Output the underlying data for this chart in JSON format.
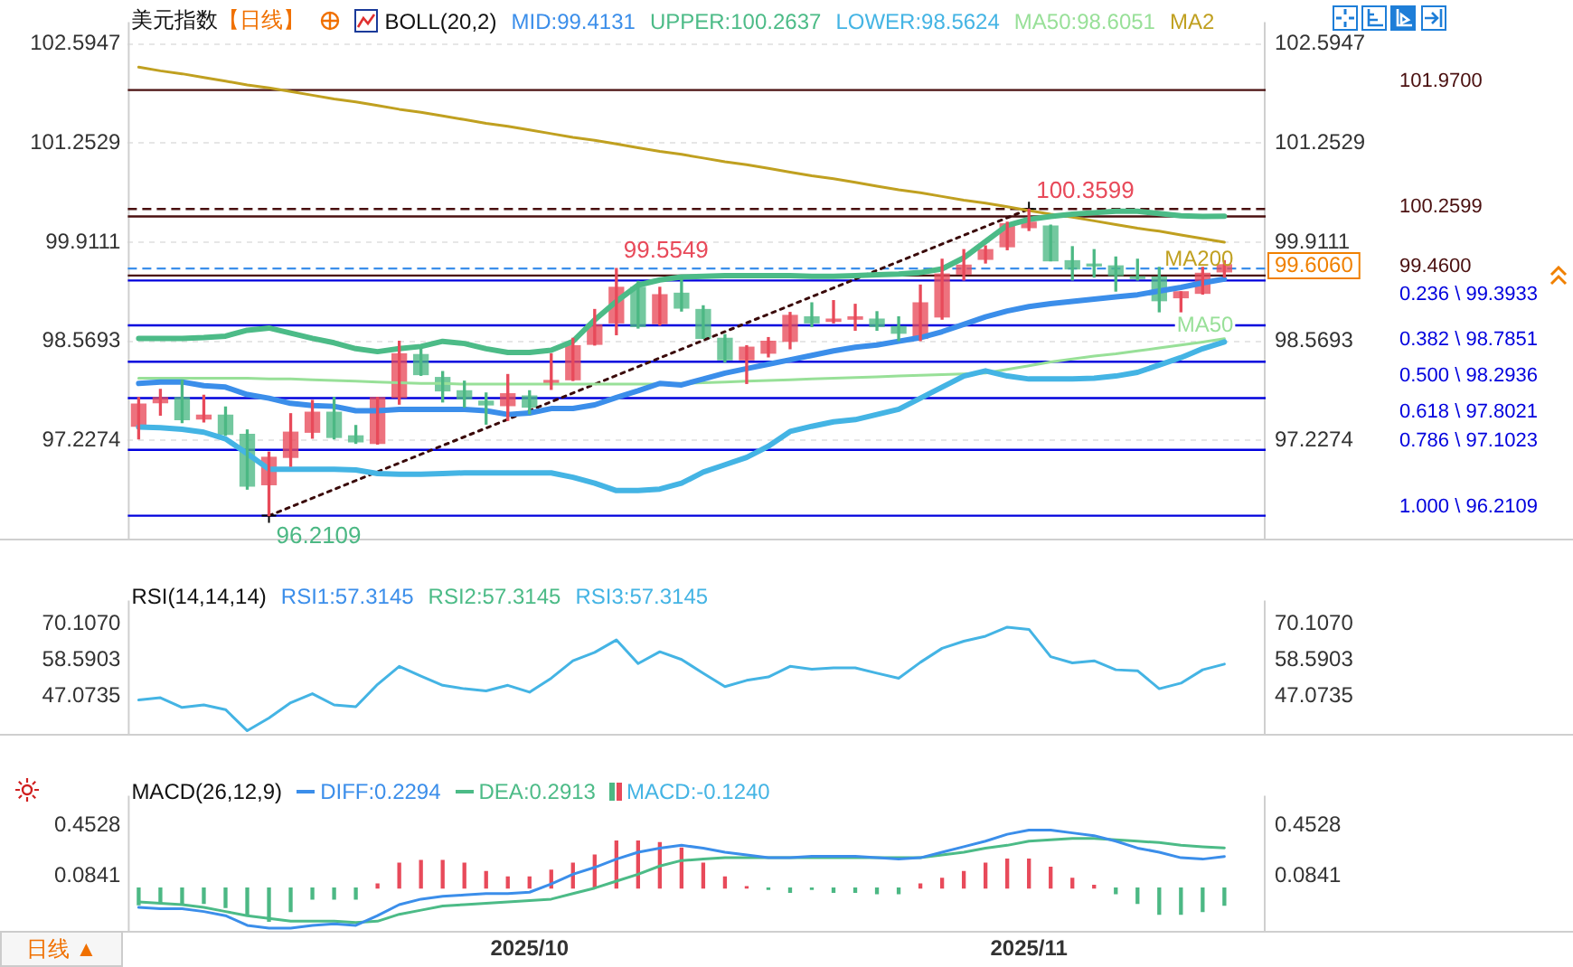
{
  "chart_data": [
    {
      "type": "candlestick",
      "title": "美元指数",
      "subtitle": "【日线】",
      "legend_title": "BOLL(20,2)",
      "legend": "top",
      "tick_labels": "y",
      "grid": "y",
      "marker": "none",
      "categories": [
        null,
        null,
        null,
        null,
        null,
        null,
        null,
        null,
        null,
        null,
        null,
        null,
        null,
        null,
        null,
        null,
        null,
        null,
        "2025/10",
        null,
        null,
        null,
        null,
        null,
        null,
        null,
        null,
        null,
        null,
        null,
        null,
        null,
        null,
        null,
        null,
        null,
        null,
        null,
        null,
        null,
        null,
        "2025/11",
        null,
        null,
        null,
        null,
        null,
        null,
        null,
        null,
        null
      ],
      "ohlc": [
        [
          97.42,
          97.81,
          97.25,
          97.72
        ],
        [
          97.74,
          97.92,
          97.57,
          97.81
        ],
        [
          97.81,
          98.04,
          97.47,
          97.51
        ],
        [
          97.52,
          97.84,
          97.48,
          97.57
        ],
        [
          97.57,
          97.68,
          97.3,
          97.31
        ],
        [
          97.31,
          97.37,
          96.57,
          96.61
        ],
        [
          96.63,
          97.07,
          96.2109,
          97.0
        ],
        [
          97.0,
          97.59,
          96.88,
          97.34
        ],
        [
          97.34,
          97.77,
          97.26,
          97.61
        ],
        [
          97.61,
          97.81,
          97.25,
          97.27
        ],
        [
          97.29,
          97.43,
          97.19,
          97.21
        ],
        [
          97.19,
          97.81,
          97.18,
          97.81
        ],
        [
          97.81,
          98.57,
          97.72,
          98.4
        ],
        [
          98.39,
          98.48,
          98.11,
          98.12
        ],
        [
          98.08,
          98.16,
          97.75,
          97.9
        ],
        [
          97.9,
          98.03,
          97.68,
          97.79
        ],
        [
          97.76,
          97.87,
          97.45,
          97.71
        ],
        [
          97.7,
          98.12,
          97.5,
          97.86
        ],
        [
          97.83,
          97.9,
          97.59,
          97.68
        ],
        [
          98.0,
          98.4,
          97.92,
          98.04
        ],
        [
          98.05,
          98.61,
          98.04,
          98.51
        ],
        [
          98.53,
          99.0,
          98.52,
          98.79
        ],
        [
          98.82,
          99.5549,
          98.66,
          99.3
        ],
        [
          99.3,
          99.38,
          98.75,
          98.77
        ],
        [
          98.81,
          99.3,
          98.79,
          99.2
        ],
        [
          99.22,
          99.44,
          98.98,
          99.02
        ],
        [
          99.0,
          99.05,
          98.61,
          98.61
        ],
        [
          98.61,
          98.66,
          98.29,
          98.32
        ],
        [
          98.32,
          98.51,
          98.0,
          98.49
        ],
        [
          98.41,
          98.62,
          98.36,
          98.57
        ],
        [
          98.57,
          98.96,
          98.47,
          98.92
        ],
        [
          98.9,
          99.09,
          98.77,
          98.82
        ],
        [
          98.84,
          99.12,
          98.82,
          98.87
        ],
        [
          98.87,
          99.07,
          98.72,
          98.9
        ],
        [
          98.87,
          98.97,
          98.72,
          98.77
        ],
        [
          98.77,
          98.9,
          98.58,
          98.68
        ],
        [
          98.61,
          99.33,
          98.58,
          99.09
        ],
        [
          98.9,
          99.68,
          98.87,
          99.48
        ],
        [
          99.48,
          99.81,
          99.4,
          99.6
        ],
        [
          99.68,
          99.86,
          99.63,
          99.81
        ],
        [
          99.85,
          100.18,
          99.81,
          100.16
        ],
        [
          100.11,
          100.3599,
          100.07,
          100.18
        ],
        [
          100.13,
          100.14,
          99.66,
          99.66
        ],
        [
          99.66,
          99.85,
          99.4,
          99.55
        ],
        [
          99.61,
          99.81,
          99.44,
          99.59
        ],
        [
          99.59,
          99.71,
          99.25,
          99.46
        ],
        [
          99.44,
          99.68,
          99.4,
          99.42
        ],
        [
          99.44,
          99.57,
          98.97,
          99.12
        ],
        [
          99.16,
          99.24,
          98.97,
          99.24
        ],
        [
          99.22,
          99.57,
          99.21,
          99.49
        ],
        [
          99.51,
          99.66,
          99.44,
          99.606
        ]
      ],
      "series": [
        {
          "name": "MID:99.4131",
          "type": "line",
          "color": "#3b8eea",
          "values": [
            98.0,
            98.02,
            98.02,
            97.97,
            97.95,
            97.85,
            97.8,
            97.73,
            97.7,
            97.69,
            97.63,
            97.63,
            97.65,
            97.65,
            97.65,
            97.65,
            97.63,
            97.58,
            97.6,
            97.66,
            97.66,
            97.71,
            97.81,
            97.9,
            98.0,
            97.98,
            98.06,
            98.14,
            98.2,
            98.26,
            98.32,
            98.38,
            98.44,
            98.49,
            98.52,
            98.57,
            98.62,
            98.7,
            98.8,
            98.9,
            98.98,
            99.04,
            99.08,
            99.11,
            99.14,
            99.17,
            99.2,
            99.25,
            99.3,
            99.36,
            99.4131
          ]
        },
        {
          "name": "UPPER:100.2637",
          "type": "line",
          "color": "#4cbb87",
          "values": [
            98.61,
            98.61,
            98.61,
            98.62,
            98.64,
            98.72,
            98.75,
            98.68,
            98.61,
            98.55,
            98.47,
            98.43,
            98.47,
            98.5,
            98.57,
            98.54,
            98.47,
            98.42,
            98.42,
            98.45,
            98.57,
            98.86,
            99.11,
            99.33,
            99.4,
            99.44,
            99.45,
            99.46,
            99.46,
            99.46,
            99.46,
            99.45,
            99.45,
            99.46,
            99.47,
            99.48,
            99.5,
            99.55,
            99.7,
            99.92,
            100.14,
            100.22,
            100.26,
            100.29,
            100.31,
            100.33,
            100.33,
            100.3,
            100.27,
            100.26,
            100.2637
          ]
        },
        {
          "name": "LOWER:98.5624",
          "type": "line",
          "color": "#44b4e4",
          "values": [
            97.41,
            97.4,
            97.38,
            97.34,
            97.25,
            97.05,
            96.84,
            96.84,
            96.84,
            96.84,
            96.83,
            96.78,
            96.77,
            96.77,
            96.78,
            96.79,
            96.79,
            96.79,
            96.79,
            96.79,
            96.73,
            96.65,
            96.55,
            96.55,
            96.57,
            96.65,
            96.8,
            96.9,
            97.0,
            97.15,
            97.35,
            97.42,
            97.48,
            97.51,
            97.58,
            97.65,
            97.8,
            97.95,
            98.1,
            98.17,
            98.1,
            98.06,
            98.06,
            98.06,
            98.07,
            98.1,
            98.15,
            98.25,
            98.35,
            98.47,
            98.5624
          ]
        },
        {
          "name": "MA50:98.6051",
          "type": "line",
          "color": "#98e098",
          "values": [
            98.07,
            98.07,
            98.07,
            98.07,
            98.07,
            98.07,
            98.06,
            98.06,
            98.05,
            98.04,
            98.03,
            98.02,
            98.01,
            98.0,
            98.0,
            97.99,
            97.99,
            97.99,
            97.99,
            97.99,
            97.99,
            97.99,
            97.99,
            97.99,
            97.99,
            98.0,
            98.01,
            98.02,
            98.03,
            98.04,
            98.05,
            98.06,
            98.07,
            98.08,
            98.09,
            98.1,
            98.11,
            98.12,
            98.13,
            98.14,
            98.19,
            98.24,
            98.29,
            98.33,
            98.37,
            98.4,
            98.44,
            98.48,
            98.52,
            98.56,
            98.6051
          ]
        },
        {
          "name": "MA2",
          "type": "line",
          "color": "#c0a020",
          "values": [
            102.28,
            102.23,
            102.19,
            102.14,
            102.09,
            102.04,
            102.0,
            101.95,
            101.9,
            101.85,
            101.81,
            101.76,
            101.71,
            101.67,
            101.62,
            101.57,
            101.52,
            101.48,
            101.43,
            101.38,
            101.33,
            101.29,
            101.24,
            101.19,
            101.14,
            101.1,
            101.05,
            101.0,
            100.96,
            100.91,
            100.86,
            100.81,
            100.77,
            100.72,
            100.67,
            100.62,
            100.58,
            100.53,
            100.48,
            100.44,
            100.39,
            100.34,
            100.29,
            100.25,
            100.2,
            100.15,
            100.1,
            100.06,
            100.01,
            99.96,
            99.91
          ]
        },
        {
          "type": "line",
          "color": "#3a0a0a",
          "line_style": "dotted",
          "marker": "cross",
          "values": [
            null,
            null,
            null,
            null,
            null,
            null,
            96.2109,
            null,
            null,
            null,
            null,
            null,
            null,
            null,
            null,
            null,
            null,
            null,
            null,
            null,
            null,
            null,
            null,
            null,
            null,
            null,
            null,
            null,
            null,
            null,
            null,
            null,
            null,
            null,
            null,
            null,
            null,
            null,
            null,
            null,
            null,
            100.3599,
            null,
            null,
            null,
            null,
            null,
            null,
            null,
            null,
            null
          ]
        }
      ],
      "ylim": [
        95.9,
        102.89
      ],
      "yticks": [
        97.2274,
        98.5693,
        99.9111,
        101.2529,
        102.5947
      ],
      "y2lim": [
        95.9,
        102.89
      ],
      "y2ticks": [
        97.2274,
        98.5693,
        99.9111,
        101.2529,
        102.5947
      ],
      "ref_lines": [
        {
          "axis": "y",
          "value": 101.97,
          "label": "101.9700",
          "color": "#4a1010"
        },
        {
          "axis": "y",
          "value": 100.2599,
          "label": "100.2599",
          "color": "#4a1010"
        },
        {
          "axis": "y",
          "value": 99.46,
          "label": "99.4600",
          "color": "#4a1010"
        },
        {
          "axis": "y",
          "value": 100.3599,
          "color": "#4a1010",
          "line_style": "dashed"
        },
        {
          "axis": "y",
          "value": 99.5549,
          "color": "#3b8eea",
          "line_style": "dashed"
        },
        {
          "axis": "y",
          "value": 99.3933,
          "label": "0.236 \\ 99.3933",
          "color": "#0000dd"
        },
        {
          "axis": "y",
          "value": 98.7851,
          "label": "0.382 \\ 98.7851",
          "color": "#0000dd"
        },
        {
          "axis": "y",
          "value": 98.2936,
          "label": "0.500 \\ 98.2936",
          "color": "#0000dd"
        },
        {
          "axis": "y",
          "value": 97.8021,
          "label": "0.618 \\ 97.8021",
          "color": "#0000dd"
        },
        {
          "axis": "y",
          "value": 97.1023,
          "label": "0.786 \\ 97.1023",
          "color": "#0000dd"
        },
        {
          "axis": "y",
          "value": 96.2109,
          "label": "1.000 \\ 96.2109",
          "color": "#0000dd"
        }
      ],
      "annotations": [
        {
          "text": "100.3599",
          "y": 100.3599
        },
        {
          "text": "99.5549",
          "y": 99.5549
        },
        {
          "text": "96.2109",
          "y": 96.2109
        },
        {
          "text": "MA200",
          "y": 99.91
        },
        {
          "text": "MA50",
          "y": 98.6051
        },
        "99.6060"
      ]
    },
    {
      "type": "line",
      "legend_title": "RSI(14,14,14)",
      "legend": "top left",
      "tick_labels": "y",
      "marker": "none",
      "categories": [
        null,
        null,
        null,
        null,
        null,
        null,
        null,
        null,
        null,
        null,
        null,
        null,
        null,
        null,
        null,
        null,
        null,
        null,
        "2025/10",
        null,
        null,
        null,
        null,
        null,
        null,
        null,
        null,
        null,
        null,
        null,
        null,
        null,
        null,
        null,
        null,
        null,
        null,
        null,
        null,
        null,
        null,
        "2025/11",
        null,
        null,
        null,
        null,
        null,
        null,
        null,
        null,
        null
      ],
      "series": [
        {
          "name": "RSI1:57.3145",
          "color": "#3b8eea",
          "values": [
            null,
            null,
            null,
            null,
            null,
            null,
            null,
            null,
            null,
            null,
            null,
            null,
            null,
            null,
            null,
            null,
            null,
            null,
            null,
            null,
            null,
            null,
            null,
            null,
            null,
            null,
            null,
            null,
            null,
            null,
            null,
            null,
            null,
            null,
            null,
            null,
            null,
            null,
            null,
            null,
            null,
            null,
            null,
            null,
            null,
            null,
            null,
            null,
            null,
            null,
            null
          ]
        },
        {
          "name": "RSI2:57.3145",
          "color": "#4cbb87",
          "values": [
            null,
            null,
            null,
            null,
            null,
            null,
            null,
            null,
            null,
            null,
            null,
            null,
            null,
            null,
            null,
            null,
            null,
            null,
            null,
            null,
            null,
            null,
            null,
            null,
            null,
            null,
            null,
            null,
            null,
            null,
            null,
            null,
            null,
            null,
            null,
            null,
            null,
            null,
            null,
            null,
            null,
            null,
            null,
            null,
            null,
            null,
            null,
            null,
            null,
            null,
            null
          ]
        },
        {
          "name": "RSI3:57.3145",
          "color": "#44b4e4",
          "values": [
            45.8,
            46.5,
            43.4,
            44.2,
            42.7,
            35.9,
            40.0,
            44.9,
            47.8,
            44.2,
            43.6,
            50.8,
            56.6,
            53.5,
            50.5,
            49.4,
            48.7,
            50.5,
            48.3,
            52.8,
            58.4,
            61.1,
            65.1,
            57.5,
            61.3,
            58.8,
            54.4,
            50.1,
            52.1,
            53.2,
            56.6,
            55.7,
            56.1,
            56.1,
            54.4,
            52.8,
            57.9,
            62.4,
            64.7,
            66.3,
            69.2,
            68.5,
            59.7,
            57.7,
            58.4,
            55.5,
            55.2,
            49.4,
            51.2,
            55.5,
            57.3145
          ]
        }
      ],
      "ylim": [
        34.9,
        77.8
      ],
      "yticks": [
        {
          "value": 47.0735,
          "label": "47.0735"
        },
        {
          "value": 58.5903,
          "label": "58.5903"
        },
        {
          "value": 70.107,
          "label": "70.1070"
        }
      ],
      "y2lim": [
        34.9,
        77.8
      ],
      "y2ticks": [
        {
          "value": 47.0735,
          "label": "47.0735"
        },
        {
          "value": 58.5903,
          "label": "58.5903"
        },
        {
          "value": 70.107,
          "label": "70.1070"
        }
      ]
    },
    {
      "type": "bar",
      "legend_title": "MACD(26,12,9)",
      "legend": "top left",
      "marker": "none",
      "categories": [
        null,
        null,
        null,
        null,
        null,
        null,
        null,
        null,
        null,
        null,
        null,
        null,
        null,
        null,
        null,
        null,
        null,
        null,
        "2025/10",
        null,
        null,
        null,
        null,
        null,
        null,
        null,
        null,
        null,
        null,
        null,
        null,
        null,
        null,
        null,
        null,
        null,
        null,
        null,
        null,
        null,
        null,
        "2025/11",
        null,
        null,
        null,
        null,
        null,
        null,
        null,
        null,
        null
      ],
      "series": [
        {
          "name": "DIFF:0.2294",
          "type": "line",
          "color": "#3b8eea",
          "values": [
            -0.14,
            -0.15,
            -0.15,
            -0.17,
            -0.2,
            -0.27,
            -0.29,
            -0.29,
            -0.27,
            -0.26,
            -0.27,
            -0.2,
            -0.12,
            -0.08,
            -0.06,
            -0.05,
            -0.04,
            -0.04,
            -0.03,
            0.03,
            0.1,
            0.15,
            0.21,
            0.26,
            0.29,
            0.31,
            0.29,
            0.26,
            0.24,
            0.22,
            0.22,
            0.23,
            0.23,
            0.23,
            0.22,
            0.21,
            0.22,
            0.26,
            0.3,
            0.34,
            0.39,
            0.42,
            0.42,
            0.4,
            0.38,
            0.34,
            0.29,
            0.26,
            0.22,
            0.21,
            0.2294
          ]
        },
        {
          "name": "DEA:0.2913",
          "type": "line",
          "color": "#4cbb87",
          "values": [
            -0.1,
            -0.11,
            -0.12,
            -0.14,
            -0.17,
            -0.2,
            -0.22,
            -0.24,
            -0.24,
            -0.24,
            -0.25,
            -0.24,
            -0.19,
            -0.16,
            -0.13,
            -0.12,
            -0.11,
            -0.1,
            -0.09,
            -0.08,
            -0.04,
            0.0,
            0.05,
            0.1,
            0.16,
            0.2,
            0.21,
            0.22,
            0.22,
            0.22,
            0.22,
            0.22,
            0.22,
            0.22,
            0.22,
            0.22,
            0.22,
            0.24,
            0.26,
            0.29,
            0.31,
            0.34,
            0.35,
            0.36,
            0.36,
            0.35,
            0.34,
            0.33,
            0.31,
            0.3,
            0.2913
          ]
        },
        {
          "name": "MACD:-0.1240",
          "type": "bar",
          "color": "#44b4e4",
          "colors": [
            "#4cb884",
            "#4cb884",
            "#4cb884",
            "#4cb884",
            "#4cb884",
            "#4cb884",
            "#4cb884",
            "#4cb884",
            "#4cb884",
            "#4cb884",
            "#4cb884",
            "#e84a5a",
            "#e84a5a",
            "#e84a5a",
            "#e84a5a",
            "#e84a5a",
            "#e84a5a",
            "#e84a5a",
            "#e84a5a",
            "#e84a5a",
            "#e84a5a",
            "#e84a5a",
            "#e84a5a",
            "#e84a5a",
            "#e84a5a",
            "#e84a5a",
            "#e84a5a",
            "#e84a5a",
            "#e84a5a",
            "#4cb884",
            "#4cb884",
            "#4cb884",
            "#4cb884",
            "#4cb884",
            "#4cb884",
            "#4cb884",
            "#e84a5a",
            "#e84a5a",
            "#e84a5a",
            "#e84a5a",
            "#e84a5a",
            "#e84a5a",
            "#e84a5a",
            "#e84a5a",
            "#e84a5a",
            "#4cb884",
            "#4cb884",
            "#4cb884",
            "#4cb884",
            "#4cb884",
            "#4cb884"
          ],
          "values": [
            -0.12,
            -0.11,
            -0.12,
            -0.11,
            -0.14,
            -0.2,
            -0.24,
            -0.17,
            -0.08,
            -0.08,
            -0.08,
            0.03,
            0.18,
            0.2,
            0.2,
            0.18,
            0.12,
            0.08,
            0.08,
            0.13,
            0.18,
            0.24,
            0.34,
            0.34,
            0.33,
            0.29,
            0.18,
            0.08,
            0.01,
            -0.01,
            -0.03,
            -0.01,
            -0.03,
            -0.03,
            -0.04,
            -0.04,
            0.03,
            0.07,
            0.12,
            0.18,
            0.21,
            0.21,
            0.15,
            0.07,
            0.02,
            -0.04,
            -0.11,
            -0.19,
            -0.19,
            -0.17,
            -0.124
          ]
        }
      ],
      "ylim": [
        -0.31,
        0.67
      ],
      "yticks": [
        {
          "value": 0.0841,
          "label": "0.0841"
        },
        {
          "value": 0.4528,
          "label": "0.4528"
        }
      ],
      "y2lim": [
        -0.31,
        0.67
      ],
      "y2ticks": [
        {
          "value": 0.0841,
          "label": "0.0841"
        },
        {
          "value": 0.4528,
          "label": "0.4528"
        }
      ],
      "annotations": [
        "日线 ▲"
      ]
    }
  ]
}
